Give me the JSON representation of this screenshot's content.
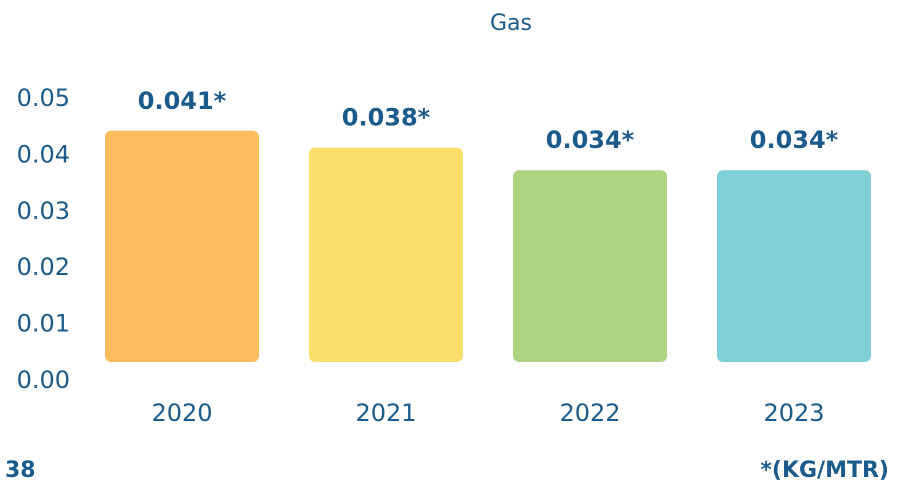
{
  "colors": {
    "text_primary": "#1b5b8c",
    "bar_2020": "#fdbd5f",
    "bar_2021": "#f9de69",
    "bar_2022": "#afd47f",
    "bar_2023": "#7fd0d6"
  },
  "chart_data": {
    "type": "bar",
    "title": "Gas",
    "xlabel": "",
    "ylabel": "",
    "categories": [
      "2020",
      "2021",
      "2022",
      "2023"
    ],
    "values": [
      0.041,
      0.038,
      0.034,
      0.034
    ],
    "value_labels": [
      "0.041*",
      "0.038*",
      "0.034*",
      "0.034*"
    ],
    "y_ticks": [
      "0.00",
      "0.01",
      "0.02",
      "0.03",
      "0.04",
      "0.05"
    ],
    "ylim": [
      0,
      0.05
    ],
    "grid": false,
    "legend": "none"
  },
  "footer": {
    "page_number": "38",
    "unit_note": "*(KG/MTR)"
  }
}
